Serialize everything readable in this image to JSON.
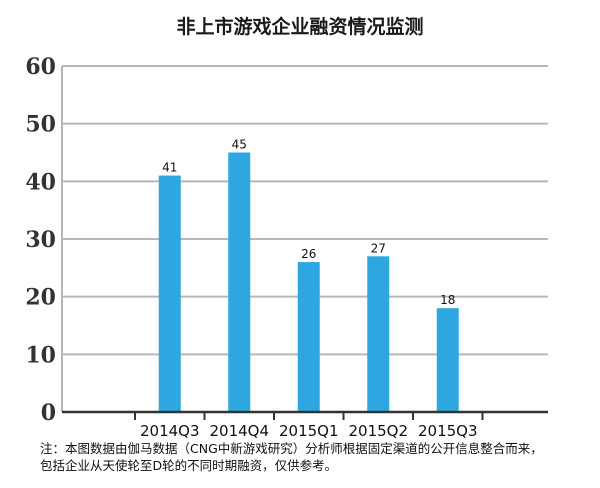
{
  "chart_data": {
    "type": "bar",
    "title": "非上市游戏企业融资情况监测",
    "categories": [
      "2014Q3",
      "2014Q4",
      "2015Q1",
      "2015Q2",
      "2015Q3"
    ],
    "values": [
      41,
      45,
      26,
      27,
      18
    ],
    "data_labels": [
      "41",
      "45",
      "26",
      "27",
      "18"
    ],
    "y_ticks": [
      "0",
      "10",
      "20",
      "30",
      "40",
      "50",
      "60"
    ],
    "ylim": [
      0,
      60
    ],
    "grid": true,
    "legend": "none",
    "xlabel": "",
    "ylabel": "",
    "colors": {
      "bar": "#2ea7e0",
      "grid": "#b7b7b7",
      "axis": "#333333",
      "tick_label": "#333333"
    }
  },
  "footnote": {
    "line1": "注：本图数据由伽马数据（CNG中新游戏研究）分析师根据固定渠道的公开信息整合而来，",
    "line2": "包括企业从天使轮至D轮的不同时期融资，仅供参考。"
  }
}
